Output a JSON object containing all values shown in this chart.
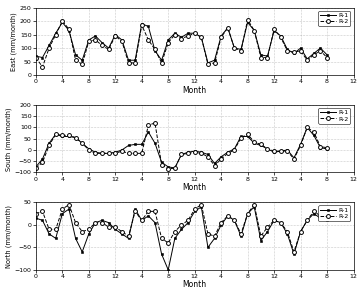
{
  "east_r1": [
    70,
    65,
    110,
    155,
    195,
    165,
    75,
    55,
    130,
    145,
    120,
    100,
    150,
    130,
    55,
    55,
    190,
    180,
    90,
    55,
    130,
    155,
    140,
    155,
    155,
    140,
    45,
    55,
    145,
    175,
    100,
    95,
    195,
    165,
    75,
    70,
    165,
    145,
    95,
    80,
    100,
    60,
    80,
    100,
    75
  ],
  "east_r2": [
    65,
    30,
    100,
    150,
    200,
    170,
    55,
    40,
    125,
    130,
    110,
    95,
    145,
    125,
    45,
    45,
    185,
    130,
    95,
    45,
    120,
    150,
    135,
    145,
    155,
    140,
    40,
    45,
    140,
    175,
    100,
    90,
    205,
    165,
    65,
    65,
    170,
    140,
    90,
    85,
    90,
    55,
    75,
    90,
    65
  ],
  "south_r1": [
    -75,
    -40,
    30,
    70,
    60,
    60,
    55,
    30,
    5,
    -10,
    -15,
    -15,
    -10,
    0,
    20,
    25,
    25,
    80,
    30,
    -55,
    -75,
    -80,
    -20,
    -10,
    -5,
    -10,
    -20,
    -60,
    -30,
    -10,
    5,
    60,
    60,
    30,
    20,
    5,
    -10,
    -5,
    0,
    -35,
    25,
    100,
    65,
    10,
    5
  ],
  "south_r2": [
    -80,
    -55,
    20,
    70,
    65,
    65,
    55,
    30,
    0,
    -15,
    -15,
    -15,
    -15,
    -5,
    -15,
    -15,
    -15,
    110,
    120,
    -65,
    -85,
    -80,
    -20,
    -15,
    -10,
    -15,
    -30,
    -70,
    -40,
    -15,
    0,
    55,
    70,
    35,
    25,
    5,
    -5,
    -5,
    -5,
    -40,
    20,
    100,
    80,
    15,
    10
  ],
  "north_r1": [
    15,
    10,
    -20,
    -30,
    25,
    35,
    -30,
    -60,
    -20,
    5,
    10,
    5,
    -10,
    -20,
    -30,
    35,
    10,
    20,
    5,
    -65,
    -100,
    -30,
    -10,
    5,
    30,
    40,
    -50,
    -30,
    0,
    20,
    10,
    -25,
    25,
    40,
    -35,
    -15,
    10,
    5,
    -20,
    -65,
    -15,
    10,
    25,
    15,
    10
  ],
  "north_r2": [
    25,
    30,
    -10,
    -10,
    35,
    45,
    5,
    -15,
    -10,
    5,
    5,
    -5,
    -5,
    -15,
    -25,
    30,
    10,
    30,
    30,
    -30,
    -40,
    -15,
    0,
    10,
    35,
    45,
    -20,
    -25,
    5,
    20,
    10,
    -20,
    25,
    45,
    -25,
    -5,
    10,
    5,
    -15,
    -60,
    -15,
    10,
    30,
    20,
    15
  ],
  "xlabel": "Month",
  "east_ylabel": "East (mm/month)",
  "south_ylabel": "South (mm/month)",
  "north_ylabel": "North (mm/month)",
  "east_ylim": [
    0,
    250
  ],
  "south_ylim": [
    -100,
    200
  ],
  "north_ylim": [
    -100,
    50
  ],
  "east_yticks": [
    0,
    50,
    100,
    150,
    200,
    250
  ],
  "south_yticks": [
    -100,
    -50,
    0,
    50,
    100,
    150,
    200
  ],
  "north_yticks": [
    -100,
    -50,
    0,
    50
  ],
  "legend_labels": [
    "R-1",
    "R-2"
  ]
}
